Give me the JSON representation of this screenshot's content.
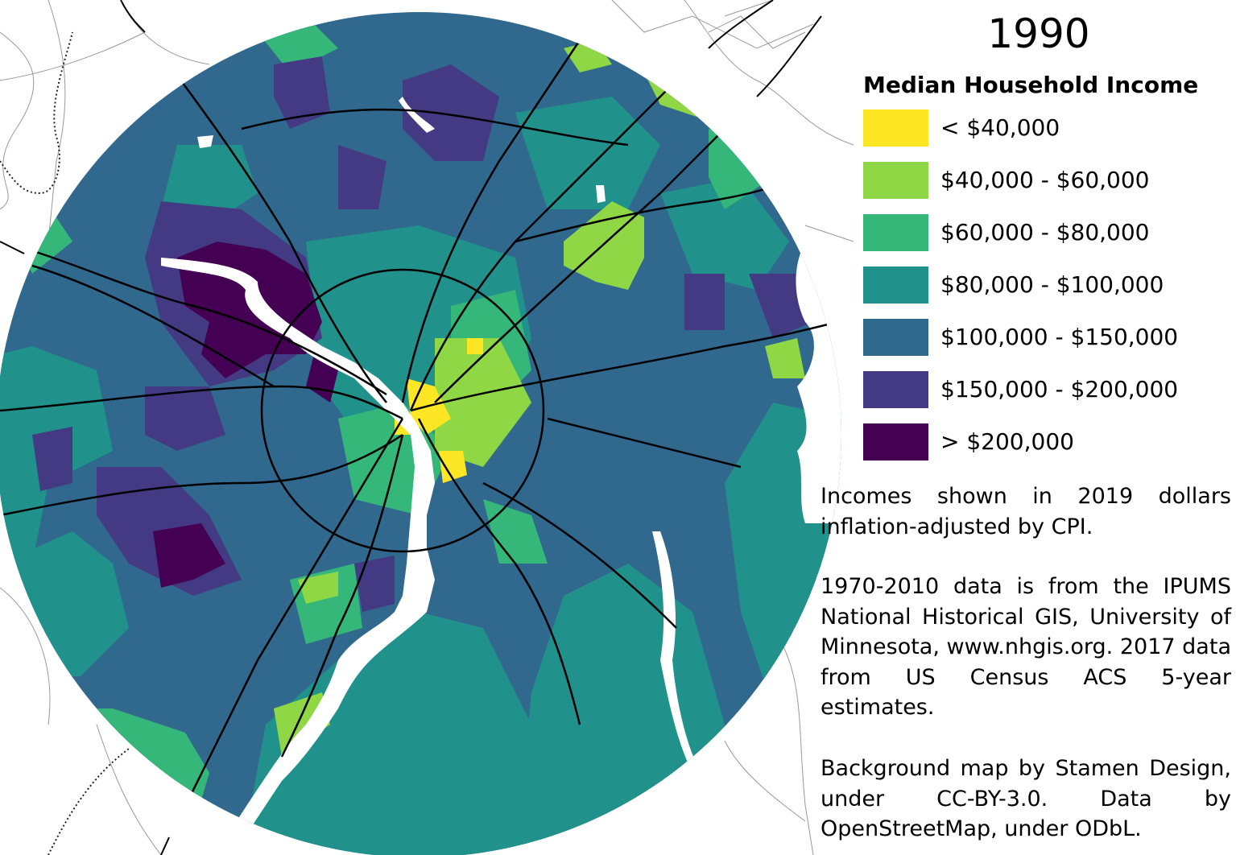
{
  "map": {
    "year": "1990",
    "colors": {
      "background": "#ffffff",
      "water": "#ffffff",
      "roads": "#000000",
      "base_fill": "#31688e"
    }
  },
  "legend": {
    "title": "Median Household Income",
    "items": [
      {
        "label": "< $40,000",
        "color": "#fde725"
      },
      {
        "label": "$40,000 - $60,000",
        "color": "#8fd744"
      },
      {
        "label": "$60,000 - $80,000",
        "color": "#35b779"
      },
      {
        "label": "$80,000 - $100,000",
        "color": "#21918c"
      },
      {
        "label": "$100,000 - $150,000",
        "color": "#31688e"
      },
      {
        "label": "$150,000 - $200,000",
        "color": "#443a83"
      },
      {
        "label": "> $200,000",
        "color": "#440154"
      }
    ]
  },
  "notes": [
    "Incomes shown in 2019 dollars inflation-adjusted by CPI.",
    "1970-2010 data is from the IPUMS National Historical GIS, University of Minnesota, www.nhgis.org. 2017 data from US Census ACS 5-year estimates.",
    "Background map by Stamen Design, under CC-BY-3.0. Data by OpenStreetMap, under ODbL."
  ]
}
